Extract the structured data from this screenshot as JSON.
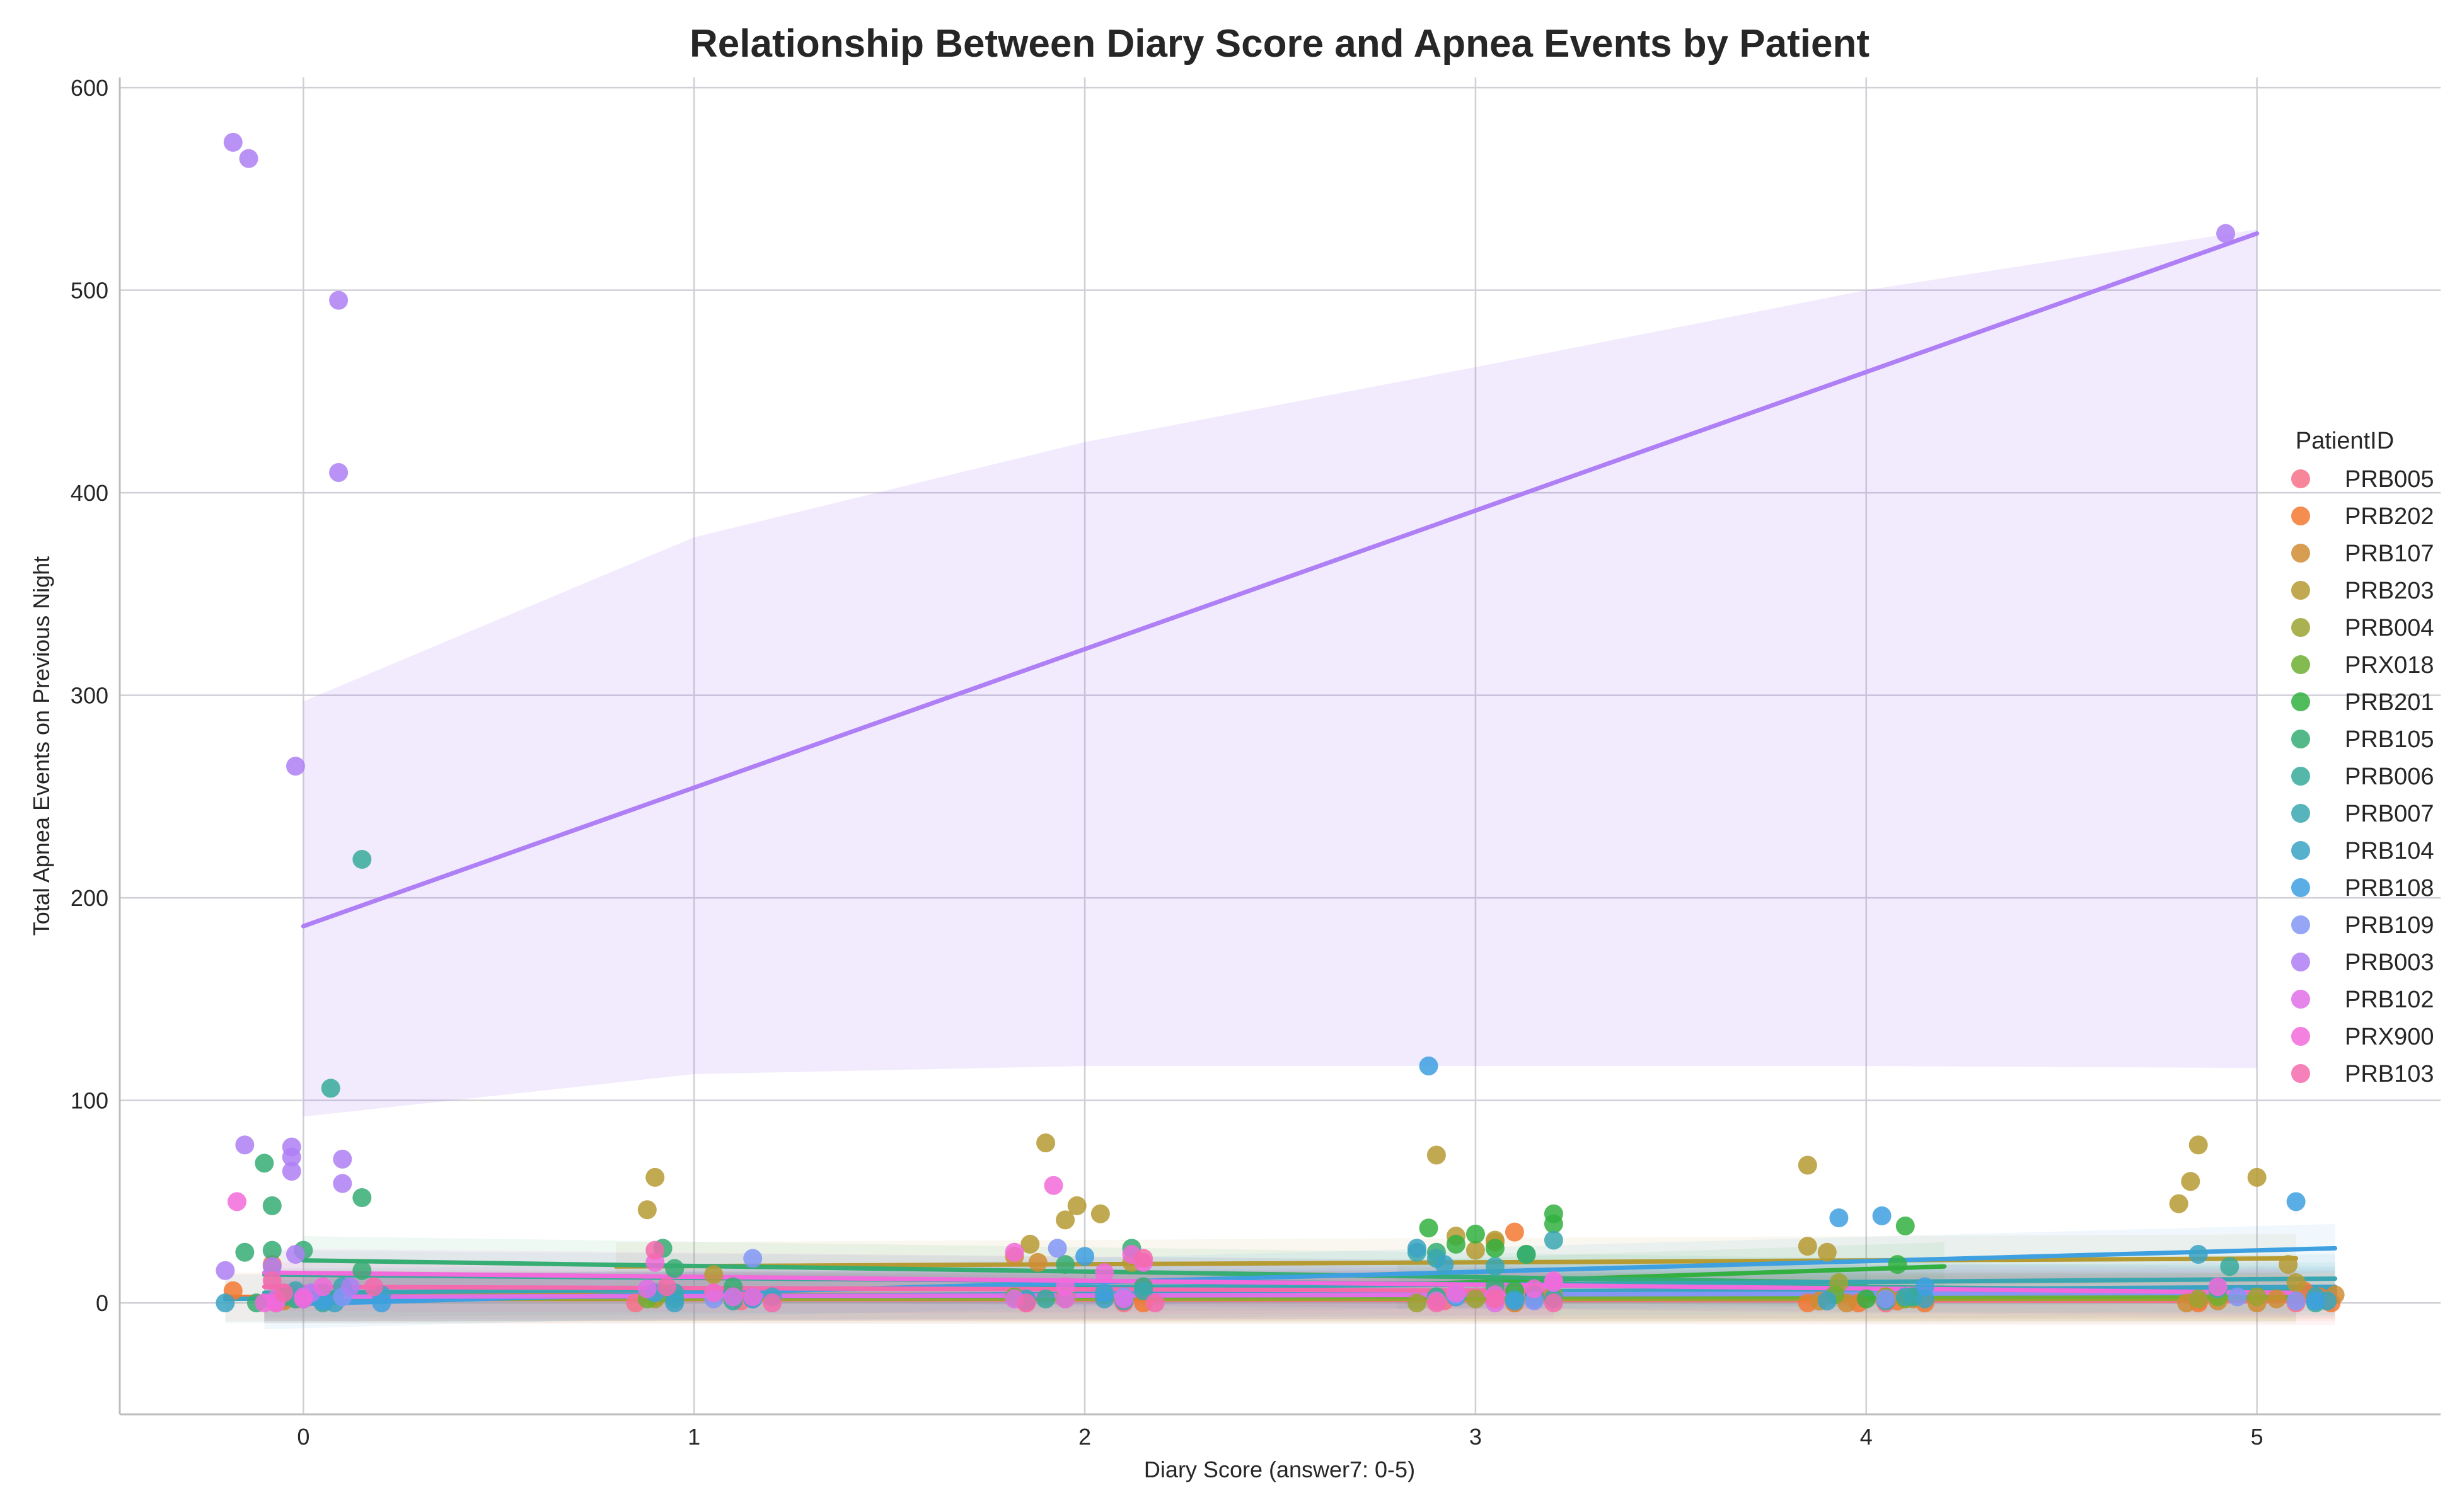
{
  "chart_data": {
    "type": "scatter",
    "title": "Relationship Between Diary Score and Apnea Events by Patient",
    "xlabel": "Diary Score (answer7: 0-5)",
    "ylabel": "Total Apnea Events on Previous Night",
    "xlim": [
      -0.47,
      5.47
    ],
    "ylim": [
      -55,
      605
    ],
    "xticks": [
      0,
      1,
      2,
      3,
      4,
      5
    ],
    "yticks": [
      0,
      100,
      200,
      300,
      400,
      500,
      600
    ],
    "grid": true,
    "legend": {
      "title": "PatientID",
      "placement": "right"
    },
    "series": [
      {
        "name": "PRB005",
        "color": "#f77189",
        "points": [
          [
            -0.07,
            0
          ],
          [
            -0.05,
            2
          ],
          [
            0.85,
            0
          ],
          [
            1.12,
            1
          ],
          [
            1.85,
            0
          ],
          [
            1.95,
            3
          ],
          [
            2.1,
            0
          ],
          [
            2.92,
            1
          ],
          [
            3.1,
            0
          ],
          [
            4.05,
            0
          ],
          [
            4.85,
            1
          ],
          [
            5.1,
            0
          ]
        ],
        "fit": {
          "x": [
            -0.1,
            5.2
          ],
          "y": [
            2,
            1
          ]
        }
      },
      {
        "name": "PRB202",
        "color": "#f37932",
        "points": [
          [
            -0.18,
            6
          ],
          [
            -0.08,
            19
          ],
          [
            0.9,
            3
          ],
          [
            1.05,
            5
          ],
          [
            2.05,
            4
          ],
          [
            2.15,
            0
          ],
          [
            3.1,
            35
          ],
          [
            3.15,
            5
          ],
          [
            3.85,
            0
          ],
          [
            3.98,
            0
          ],
          [
            4.08,
            1
          ],
          [
            4.15,
            0
          ],
          [
            4.85,
            0
          ],
          [
            5.12,
            6
          ],
          [
            5.16,
            3
          ],
          [
            5.19,
            0
          ]
        ],
        "fit": {
          "x": [
            -0.2,
            5.2
          ],
          "y": [
            3,
            3
          ]
        }
      },
      {
        "name": "PRB107",
        "color": "#d08c32",
        "points": [
          [
            -0.05,
            1
          ],
          [
            1.82,
            23
          ],
          [
            1.88,
            20
          ],
          [
            1.95,
            2
          ],
          [
            3.05,
            30
          ],
          [
            3.1,
            0
          ],
          [
            3.88,
            1
          ],
          [
            3.95,
            0
          ],
          [
            4.05,
            3
          ],
          [
            4.12,
            2
          ],
          [
            4.82,
            0
          ],
          [
            4.9,
            1
          ],
          [
            5.0,
            0
          ],
          [
            5.05,
            2
          ],
          [
            5.18,
            1
          ],
          [
            5.2,
            4
          ]
        ],
        "fit": {
          "x": [
            -0.1,
            5.2
          ],
          "y": [
            4,
            4
          ]
        }
      },
      {
        "name": "PRB203",
        "color": "#b69a32",
        "points": [
          [
            0.88,
            46
          ],
          [
            0.9,
            62
          ],
          [
            1.05,
            14
          ],
          [
            1.86,
            29
          ],
          [
            1.9,
            79
          ],
          [
            1.95,
            41
          ],
          [
            1.98,
            48
          ],
          [
            2.04,
            44
          ],
          [
            2.12,
            20
          ],
          [
            2.9,
            73
          ],
          [
            2.95,
            33
          ],
          [
            3.0,
            26
          ],
          [
            3.05,
            31
          ],
          [
            3.85,
            68
          ],
          [
            3.85,
            28
          ],
          [
            3.9,
            25
          ],
          [
            4.8,
            49
          ],
          [
            4.83,
            60
          ],
          [
            4.85,
            78
          ],
          [
            5.0,
            62
          ],
          [
            5.08,
            19
          ],
          [
            5.1,
            10
          ]
        ],
        "fit": {
          "x": [
            0.8,
            5.1
          ],
          "y": [
            18,
            22
          ]
        }
      },
      {
        "name": "PRB004",
        "color": "#9ba331",
        "points": [
          [
            -0.02,
            2
          ],
          [
            0.9,
            2
          ],
          [
            1.95,
            3
          ],
          [
            2.85,
            0
          ],
          [
            3.0,
            2
          ],
          [
            3.2,
            4
          ],
          [
            3.93,
            10
          ],
          [
            4.05,
            3
          ],
          [
            4.85,
            2
          ],
          [
            5.0,
            3
          ]
        ],
        "fit": {
          "x": [
            -0.1,
            5.1
          ],
          "y": [
            2,
            2
          ]
        }
      },
      {
        "name": "PRX018",
        "color": "#6faf31",
        "points": [
          [
            -0.03,
            3
          ],
          [
            0.88,
            2
          ],
          [
            0.92,
            5
          ],
          [
            1.82,
            3
          ],
          [
            2.05,
            4
          ],
          [
            2.9,
            3
          ],
          [
            3.1,
            2
          ],
          [
            3.92,
            4
          ],
          [
            4.1,
            2
          ],
          [
            4.9,
            3
          ]
        ],
        "fit": {
          "x": [
            -0.1,
            5.1
          ],
          "y": [
            3,
            3
          ]
        }
      },
      {
        "name": "PRB201",
        "color": "#33b040",
        "points": [
          [
            2.88,
            37
          ],
          [
            2.95,
            29
          ],
          [
            3.0,
            34
          ],
          [
            3.05,
            27
          ],
          [
            3.13,
            24
          ],
          [
            3.2,
            44
          ],
          [
            3.2,
            39
          ],
          [
            3.1,
            6
          ],
          [
            3.15,
            4
          ],
          [
            4.08,
            19
          ],
          [
            4.1,
            38
          ],
          [
            4.12,
            3
          ],
          [
            4.0,
            2
          ]
        ],
        "fit": {
          "x": [
            2.8,
            4.2
          ],
          "y": [
            9,
            18
          ]
        }
      },
      {
        "name": "PRB105",
        "color": "#36ad73",
        "points": [
          [
            -0.15,
            25
          ],
          [
            -0.12,
            0
          ],
          [
            -0.1,
            69
          ],
          [
            -0.08,
            48
          ],
          [
            -0.08,
            26
          ],
          [
            -0.05,
            3
          ],
          [
            0.0,
            26
          ],
          [
            0.05,
            5
          ],
          [
            0.15,
            52
          ],
          [
            0.15,
            16
          ],
          [
            0.92,
            27
          ],
          [
            0.95,
            17
          ],
          [
            1.1,
            8
          ],
          [
            1.15,
            2
          ],
          [
            1.95,
            19
          ],
          [
            2.12,
            27
          ],
          [
            2.15,
            8
          ],
          [
            2.9,
            25
          ],
          [
            3.05,
            8
          ],
          [
            3.13,
            24
          ]
        ],
        "fit": {
          "x": [
            0,
            4.0
          ],
          "y": [
            21,
            10
          ]
        }
      },
      {
        "name": "PRB006",
        "color": "#37aa9a",
        "points": [
          [
            0.07,
            106
          ],
          [
            0.15,
            219
          ],
          [
            -0.02,
            2
          ],
          [
            0.05,
            0
          ],
          [
            0.95,
            2
          ],
          [
            1.1,
            1
          ],
          [
            1.9,
            2
          ],
          [
            2.1,
            1
          ],
          [
            2.9,
            3
          ],
          [
            3.1,
            2
          ],
          [
            4.05,
            1
          ],
          [
            4.12,
            3
          ],
          [
            4.93,
            18
          ],
          [
            5.15,
            0
          ]
        ],
        "fit": {
          "x": [
            -0.1,
            5.2
          ],
          "y": [
            14,
            6
          ]
        }
      },
      {
        "name": "PRB007",
        "color": "#39a7b2",
        "points": [
          [
            -0.02,
            6
          ],
          [
            0.1,
            8
          ],
          [
            0.95,
            5
          ],
          [
            1.15,
            3
          ],
          [
            1.85,
            2
          ],
          [
            2.15,
            6
          ],
          [
            2.85,
            25
          ],
          [
            2.9,
            22
          ],
          [
            3.05,
            18
          ],
          [
            3.2,
            31
          ],
          [
            3.2,
            2
          ],
          [
            4.1,
            3
          ],
          [
            4.9,
            7
          ],
          [
            5.15,
            3
          ]
        ],
        "fit": {
          "x": [
            -0.1,
            5.2
          ],
          "y": [
            5,
            12
          ]
        }
      },
      {
        "name": "PRB104",
        "color": "#3ba3c3",
        "points": [
          [
            -0.2,
            0
          ],
          [
            0.0,
            2
          ],
          [
            0.08,
            0
          ],
          [
            0.2,
            4
          ],
          [
            0.95,
            0
          ],
          [
            1.2,
            3
          ],
          [
            1.85,
            1
          ],
          [
            2.05,
            2
          ],
          [
            2.85,
            27
          ],
          [
            2.92,
            19
          ],
          [
            3.15,
            2
          ],
          [
            3.9,
            1
          ],
          [
            4.15,
            2
          ],
          [
            4.85,
            24
          ],
          [
            5.18,
            1
          ]
        ],
        "fit": {
          "x": [
            -0.2,
            5.2
          ],
          "y": [
            2,
            8
          ]
        }
      },
      {
        "name": "PRB108",
        "color": "#3ea0e0",
        "points": [
          [
            0.2,
            0
          ],
          [
            0.05,
            1
          ],
          [
            0.9,
            5
          ],
          [
            1.15,
            2
          ],
          [
            2.0,
            23
          ],
          [
            2.05,
            5
          ],
          [
            2.88,
            117
          ],
          [
            2.95,
            3
          ],
          [
            3.1,
            1
          ],
          [
            3.93,
            42
          ],
          [
            4.04,
            43
          ],
          [
            4.15,
            8
          ],
          [
            5.1,
            50
          ],
          [
            5.15,
            1
          ]
        ],
        "fit": {
          "x": [
            -0.1,
            5.2
          ],
          "y": [
            -1,
            27
          ]
        }
      },
      {
        "name": "PRB109",
        "color": "#8396f6",
        "points": [
          [
            0.1,
            3
          ],
          [
            1.15,
            22
          ],
          [
            1.05,
            2
          ],
          [
            1.93,
            27
          ],
          [
            2.1,
            3
          ],
          [
            2.95,
            4
          ],
          [
            3.15,
            1
          ],
          [
            4.05,
            2
          ],
          [
            4.95,
            3
          ],
          [
            5.1,
            1
          ]
        ],
        "fit": {
          "x": [
            -0.1,
            5.2
          ],
          "y": [
            3,
            5
          ]
        }
      },
      {
        "name": "PRB003",
        "color": "#ae7ff5",
        "points": [
          [
            -0.18,
            573
          ],
          [
            -0.14,
            565
          ],
          [
            0.09,
            495
          ],
          [
            0.09,
            410
          ],
          [
            -0.02,
            265
          ],
          [
            -0.15,
            78
          ],
          [
            -0.03,
            77
          ],
          [
            -0.03,
            72
          ],
          [
            -0.03,
            65
          ],
          [
            0.1,
            71
          ],
          [
            0.1,
            59
          ],
          [
            -0.02,
            24
          ],
          [
            -0.08,
            18
          ],
          [
            -0.2,
            16
          ],
          [
            0.12,
            8
          ],
          [
            0.02,
            5
          ],
          [
            4.92,
            528
          ]
        ],
        "fit": {
          "x": [
            0,
            5.0
          ],
          "y": [
            186,
            528
          ]
        },
        "ci_lower": [
          [
            0,
            92
          ],
          [
            1,
            113
          ],
          [
            2,
            117
          ],
          [
            3,
            117
          ],
          [
            4,
            117
          ],
          [
            5,
            116
          ]
        ],
        "ci_upper": [
          [
            0,
            297
          ],
          [
            1,
            378
          ],
          [
            2,
            425
          ],
          [
            3,
            462
          ],
          [
            4,
            500
          ],
          [
            5,
            530
          ]
        ]
      },
      {
        "name": "PRB102",
        "color": "#e16fe7",
        "points": [
          [
            -0.07,
            2
          ],
          [
            0.0,
            3
          ],
          [
            0.88,
            7
          ],
          [
            1.1,
            3
          ],
          [
            1.82,
            2
          ],
          [
            1.95,
            2
          ],
          [
            2.1,
            2
          ],
          [
            2.9,
            1
          ],
          [
            3.05,
            0
          ],
          [
            3.2,
            10
          ]
        ],
        "fit": {
          "x": [
            -0.1,
            3.2
          ],
          "y": [
            3,
            4
          ]
        }
      },
      {
        "name": "PRX900",
        "color": "#f26adb",
        "points": [
          [
            -0.17,
            50
          ],
          [
            -0.1,
            0
          ],
          [
            -0.07,
            0
          ],
          [
            0.0,
            2
          ],
          [
            0.05,
            8
          ],
          [
            0.9,
            20
          ],
          [
            1.05,
            5
          ],
          [
            1.15,
            3
          ],
          [
            1.82,
            25
          ],
          [
            1.92,
            58
          ],
          [
            1.95,
            8
          ],
          [
            2.05,
            15
          ],
          [
            2.12,
            24
          ],
          [
            2.15,
            20
          ],
          [
            2.95,
            5
          ],
          [
            3.05,
            4
          ],
          [
            3.15,
            7
          ],
          [
            3.2,
            11
          ],
          [
            4.9,
            8
          ]
        ],
        "fit": {
          "x": [
            -0.1,
            5.1
          ],
          "y": [
            15,
            5
          ]
        }
      },
      {
        "name": "PRB103",
        "color": "#f46aad",
        "points": [
          [
            -0.08,
            11
          ],
          [
            -0.05,
            5
          ],
          [
            0.18,
            8
          ],
          [
            0.9,
            26
          ],
          [
            0.93,
            8
          ],
          [
            1.2,
            0
          ],
          [
            1.85,
            0
          ],
          [
            2.15,
            22
          ],
          [
            2.18,
            0
          ],
          [
            2.9,
            0
          ],
          [
            3.05,
            2
          ],
          [
            3.2,
            0
          ]
        ],
        "fit": {
          "x": [
            -0.1,
            3.2
          ],
          "y": [
            8,
            6
          ]
        }
      }
    ]
  }
}
